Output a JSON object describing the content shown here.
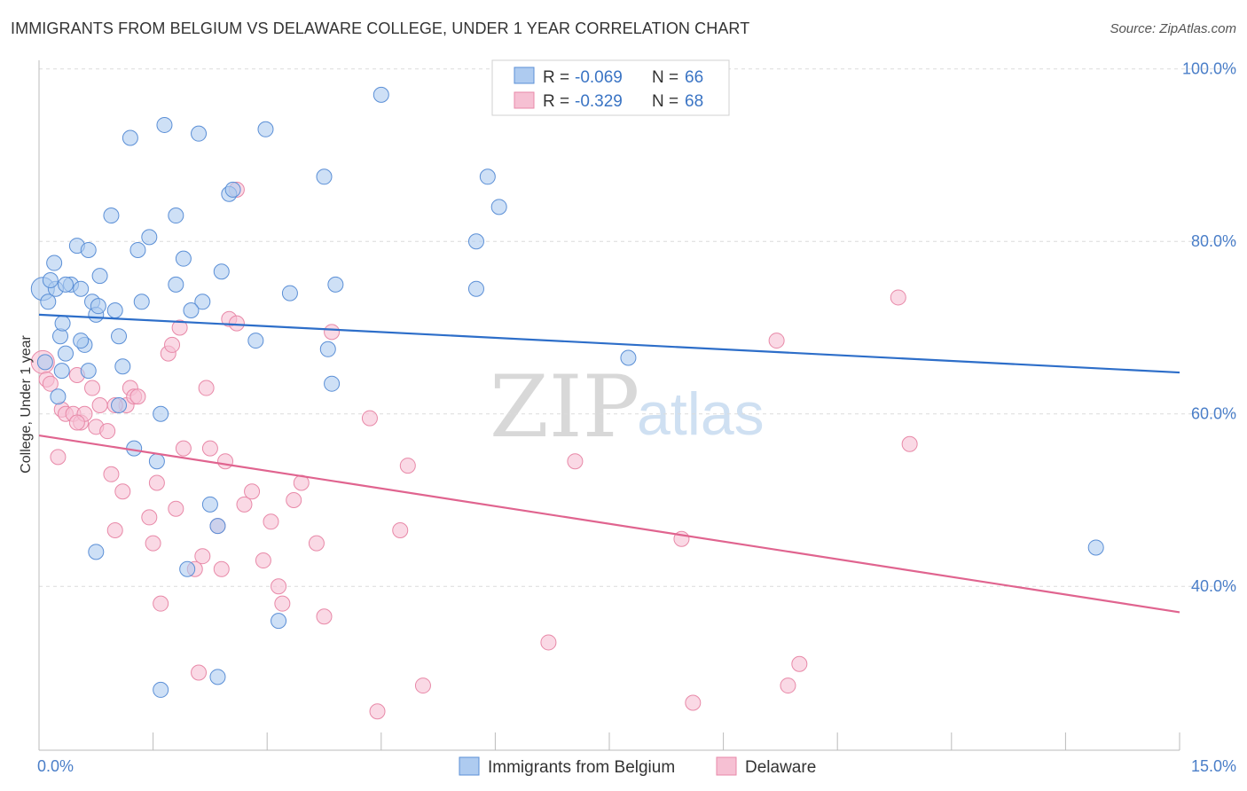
{
  "header": {
    "title": "IMMIGRANTS FROM BELGIUM VS DELAWARE COLLEGE, UNDER 1 YEAR CORRELATION CHART",
    "source": "Source: ZipAtlas.com"
  },
  "watermark": {
    "part1": "ZIP",
    "part2": "atlas"
  },
  "legend": {
    "rows": [
      {
        "r_label": "R =",
        "r_value": "-0.069",
        "n_label": "N =",
        "n_value": "66"
      },
      {
        "r_label": "R =",
        "r_value": "-0.329",
        "n_label": "N =",
        "n_value": "68"
      }
    ]
  },
  "bottom_legend": {
    "items": [
      {
        "label": "Immigrants from Belgium"
      },
      {
        "label": "Delaware"
      }
    ]
  },
  "colors": {
    "blue_fill": "#aecbf0",
    "blue_stroke": "#5b8fd6",
    "blue_line": "#2d6ec9",
    "pink_fill": "#f6c0d3",
    "pink_stroke": "#e889a8",
    "pink_line": "#e0648f",
    "grid": "#dcdcdc",
    "axis_text": "#4a7ec8"
  },
  "chart_data": {
    "type": "scatter",
    "title": "IMMIGRANTS FROM BELGIUM VS DELAWARE COLLEGE, UNDER 1 YEAR CORRELATION CHART",
    "xlabel": "",
    "ylabel": "College, Under 1 year",
    "xlim": [
      0,
      15
    ],
    "ylim": [
      21,
      101
    ],
    "x_tick_labels": [
      "0.0%",
      "15.0%"
    ],
    "y_ticks": [
      40,
      60,
      80,
      100
    ],
    "y_tick_labels": [
      "40.0%",
      "60.0%",
      "80.0%",
      "100.0%"
    ],
    "grid": true,
    "series": [
      {
        "name": "Immigrants from Belgium",
        "color": "blue",
        "trend": {
          "x": [
            0,
            15
          ],
          "y": [
            71.5,
            64.8
          ]
        },
        "points": [
          [
            0.05,
            74.5
          ],
          [
            0.08,
            66
          ],
          [
            0.12,
            73
          ],
          [
            0.2,
            77.5
          ],
          [
            0.22,
            74.5
          ],
          [
            0.25,
            62
          ],
          [
            0.28,
            69
          ],
          [
            0.31,
            70.5
          ],
          [
            0.35,
            67
          ],
          [
            0.42,
            75
          ],
          [
            0.5,
            79.5
          ],
          [
            0.55,
            74.5
          ],
          [
            0.6,
            68
          ],
          [
            0.65,
            65
          ],
          [
            0.7,
            73
          ],
          [
            0.75,
            71.5
          ],
          [
            0.78,
            72.5
          ],
          [
            0.8,
            76
          ],
          [
            0.95,
            83
          ],
          [
            1.05,
            69
          ],
          [
            1.1,
            65.5
          ],
          [
            1.2,
            92
          ],
          [
            1.35,
            73
          ],
          [
            1.45,
            80.5
          ],
          [
            1.65,
            93.5
          ],
          [
            1.8,
            75
          ],
          [
            1.9,
            78
          ],
          [
            2.1,
            92.5
          ],
          [
            2.15,
            73
          ],
          [
            2.4,
            76.5
          ],
          [
            2.5,
            85.5
          ],
          [
            2.55,
            86
          ],
          [
            2.85,
            68.5
          ],
          [
            2.98,
            93
          ],
          [
            3.3,
            74
          ],
          [
            3.75,
            87.5
          ],
          [
            3.8,
            67.5
          ],
          [
            3.85,
            63.5
          ],
          [
            3.9,
            75
          ],
          [
            4.5,
            97
          ],
          [
            5.75,
            80
          ],
          [
            5.75,
            74.5
          ],
          [
            5.9,
            87.5
          ],
          [
            6.05,
            84
          ],
          [
            0.15,
            75.5
          ],
          [
            0.35,
            75
          ],
          [
            0.55,
            68.5
          ],
          [
            0.65,
            79
          ],
          [
            1.05,
            61
          ],
          [
            1.25,
            56
          ],
          [
            1.6,
            60
          ],
          [
            1.55,
            54.5
          ],
          [
            2.0,
            72
          ],
          [
            1.95,
            42
          ],
          [
            2.25,
            49.5
          ],
          [
            2.35,
            47
          ],
          [
            0.75,
            44
          ],
          [
            0.3,
            65
          ],
          [
            1.0,
            72
          ],
          [
            1.3,
            79
          ],
          [
            1.8,
            83
          ],
          [
            7.75,
            66.5
          ],
          [
            13.9,
            44.5
          ],
          [
            3.15,
            36
          ],
          [
            1.6,
            28
          ],
          [
            2.35,
            29.5
          ]
        ]
      },
      {
        "name": "Delaware",
        "color": "pink",
        "trend": {
          "x": [
            0,
            15
          ],
          "y": [
            57.5,
            37
          ]
        },
        "points": [
          [
            0.05,
            66
          ],
          [
            0.1,
            64
          ],
          [
            0.15,
            63.5
          ],
          [
            0.25,
            55
          ],
          [
            0.3,
            60.5
          ],
          [
            0.35,
            60
          ],
          [
            0.45,
            60
          ],
          [
            0.5,
            64.5
          ],
          [
            0.55,
            59
          ],
          [
            0.6,
            60
          ],
          [
            0.7,
            63
          ],
          [
            0.75,
            58.5
          ],
          [
            0.8,
            61
          ],
          [
            0.9,
            58
          ],
          [
            0.95,
            53
          ],
          [
            1.0,
            46.5
          ],
          [
            1.1,
            51
          ],
          [
            1.15,
            61
          ],
          [
            1.2,
            63
          ],
          [
            1.25,
            62
          ],
          [
            1.45,
            48
          ],
          [
            1.5,
            45
          ],
          [
            1.55,
            52
          ],
          [
            1.6,
            38
          ],
          [
            1.7,
            67
          ],
          [
            1.75,
            68
          ],
          [
            1.8,
            49
          ],
          [
            1.85,
            70
          ],
          [
            1.9,
            56
          ],
          [
            2.05,
            42
          ],
          [
            2.15,
            43.5
          ],
          [
            2.2,
            63
          ],
          [
            2.25,
            56
          ],
          [
            2.35,
            47
          ],
          [
            2.4,
            42
          ],
          [
            2.45,
            54.5
          ],
          [
            2.5,
            71
          ],
          [
            2.6,
            70.5
          ],
          [
            2.7,
            49.5
          ],
          [
            2.8,
            51
          ],
          [
            2.95,
            43
          ],
          [
            3.05,
            47.5
          ],
          [
            3.15,
            40
          ],
          [
            3.2,
            38
          ],
          [
            3.35,
            50
          ],
          [
            3.45,
            52
          ],
          [
            3.65,
            45
          ],
          [
            3.75,
            36.5
          ],
          [
            3.85,
            69.5
          ],
          [
            4.35,
            59.5
          ],
          [
            4.45,
            25.5
          ],
          [
            4.75,
            46.5
          ],
          [
            4.85,
            54
          ],
          [
            5.05,
            28.5
          ],
          [
            6.7,
            33.5
          ],
          [
            7.05,
            54.5
          ],
          [
            8.45,
            45.5
          ],
          [
            8.6,
            26.5
          ],
          [
            9.7,
            68.5
          ],
          [
            9.85,
            28.5
          ],
          [
            10.0,
            31
          ],
          [
            11.3,
            73.5
          ],
          [
            11.45,
            56.5
          ],
          [
            2.1,
            30
          ],
          [
            1.3,
            62
          ],
          [
            0.5,
            59
          ],
          [
            2.6,
            86
          ],
          [
            1.0,
            61
          ]
        ]
      }
    ]
  }
}
